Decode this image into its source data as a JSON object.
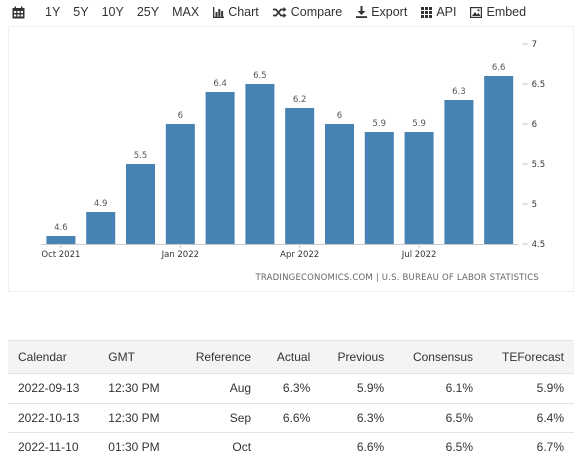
{
  "toolbar": {
    "ranges": [
      "1Y",
      "5Y",
      "10Y",
      "25Y",
      "MAX"
    ],
    "chart": "Chart",
    "compare": "Compare",
    "export": "Export",
    "api": "API",
    "embed": "Embed"
  },
  "chart_data": {
    "type": "bar",
    "categories": [
      "2021-10",
      "2021-11",
      "2021-12",
      "2022-01",
      "2022-02",
      "2022-03",
      "2022-04",
      "2022-05",
      "2022-06",
      "2022-07",
      "2022-08",
      "2022-09"
    ],
    "values": [
      4.6,
      4.9,
      5.5,
      6,
      6.4,
      6.5,
      6.2,
      6,
      5.9,
      5.9,
      6.3,
      6.6
    ],
    "value_labels": [
      "4.6",
      "4.9",
      "5.5",
      "6",
      "6.4",
      "6.5",
      "6.2",
      "6",
      "5.9",
      "5.9",
      "6.3",
      "6.6"
    ],
    "x_ticks": [
      {
        "index": 0,
        "label": "Oct 2021"
      },
      {
        "index": 3,
        "label": "Jan 2022"
      },
      {
        "index": 6,
        "label": "Apr 2022"
      },
      {
        "index": 9,
        "label": "Jul 2022"
      }
    ],
    "y_ticks": [
      "4.5",
      "5",
      "5.5",
      "6",
      "6.5",
      "7"
    ],
    "ylim": [
      4.5,
      7
    ],
    "bar_color": "#4682b4",
    "grid": false,
    "source": "TRADINGECONOMICS.COM | U.S. BUREAU OF LABOR STATISTICS"
  },
  "table": {
    "headers": [
      "Calendar",
      "GMT",
      "Reference",
      "Actual",
      "Previous",
      "Consensus",
      "TEForecast"
    ],
    "rows": [
      [
        "2022-09-13",
        "12:30 PM",
        "Aug",
        "6.3%",
        "5.9%",
        "6.1%",
        "5.9%"
      ],
      [
        "2022-10-13",
        "12:30 PM",
        "Sep",
        "6.6%",
        "6.3%",
        "6.5%",
        "6.4%"
      ],
      [
        "2022-11-10",
        "01:30 PM",
        "Oct",
        "",
        "6.6%",
        "6.5%",
        "6.7%"
      ]
    ]
  }
}
